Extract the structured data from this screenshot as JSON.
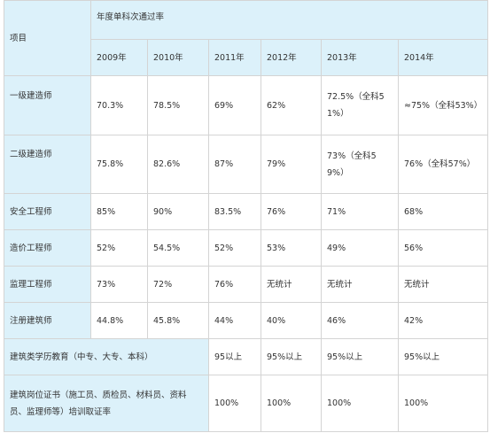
{
  "table": {
    "header": {
      "item_label": "项目",
      "group_label": "年度单科次通过率",
      "years": [
        "2009年",
        "2010年",
        "2011年",
        "2012年",
        "2013年",
        "2014年"
      ]
    },
    "rows": [
      {
        "label": "一级建造师",
        "cells": [
          "70.3%",
          "78.5%",
          "69%",
          "62%",
          "72.5%（全科51%）",
          "≈75%（全科53%）"
        ]
      },
      {
        "label": "二级建造师",
        "cells": [
          "75.8%",
          "82.6%",
          "87%",
          "79%",
          "73%（全科59%）",
          "76%（全科57%）"
        ]
      },
      {
        "label": "安全工程师",
        "cells": [
          "85%",
          "90%",
          "83.5%",
          "76%",
          "71%",
          "68%"
        ]
      },
      {
        "label": "造价工程师",
        "cells": [
          "52%",
          "54.5%",
          "52%",
          "53%",
          "49%",
          "56%"
        ]
      },
      {
        "label": "监理工程师",
        "cells": [
          "73%",
          "72%",
          "76%",
          "无统计",
          "无统计",
          "无统计"
        ]
      },
      {
        "label": "注册建筑师",
        "cells": [
          "44.8%",
          "45.8%",
          "44%",
          "40%",
          "46%",
          "42%"
        ]
      }
    ],
    "footer_rows": [
      {
        "label": "建筑类学历教育（中专、大专、本科）",
        "cells": [
          "95以上",
          "95%以上",
          "95%以上",
          "95%以上"
        ]
      },
      {
        "label": "建筑岗位证书（施工员、质检员、材料员、资料员、监理师等）培训取证率",
        "cells": [
          "100%",
          "100%",
          "100%",
          "100%"
        ]
      }
    ]
  }
}
